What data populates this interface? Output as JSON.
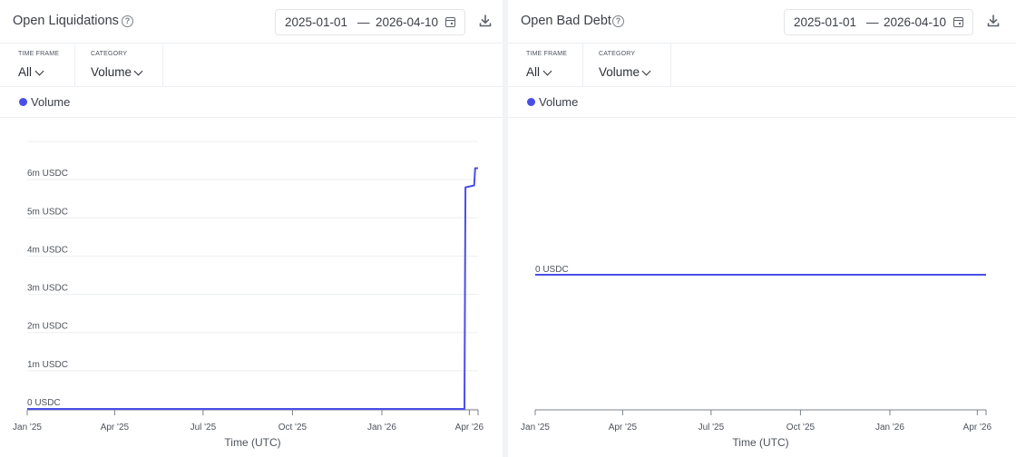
{
  "panels": [
    {
      "title": "Open Liquidations",
      "date_start": "2025-01-01",
      "date_sep": "—",
      "date_end": "2026-04-10",
      "filters": [
        {
          "label": "TIME FRAME",
          "value": "All"
        },
        {
          "label": "CATEGORY",
          "value": "Volume"
        }
      ],
      "legend": "Volume"
    },
    {
      "title": "Open Bad Debt",
      "date_start": "2025-01-01",
      "date_sep": "—",
      "date_end": "2026-04-10",
      "filters": [
        {
          "label": "TIME FRAME",
          "value": "All"
        },
        {
          "label": "CATEGORY",
          "value": "Volume"
        }
      ],
      "legend": "Volume"
    }
  ],
  "colors": {
    "series": "#4a4ee8",
    "grid": "#eceef1",
    "axis": "#7b818a"
  },
  "chart_data": [
    {
      "type": "line",
      "title": "Open Liquidations",
      "xlabel": "Time (UTC)",
      "ylabel": "",
      "x_ticks": [
        "Jan '25",
        "Apr '25",
        "Jul '25",
        "Oct '25",
        "Jan '26",
        "Apr '26"
      ],
      "y_ticks": [
        "0 USDC",
        "1m USDC",
        "2m USDC",
        "3m USDC",
        "4m USDC",
        "5m USDC",
        "6m USDC"
      ],
      "ylim": [
        0,
        7000000
      ],
      "xlim": [
        "2025-01-01",
        "2026-04-10"
      ],
      "grid": true,
      "legend_position": "top-left",
      "series": [
        {
          "name": "Volume",
          "x": [
            "2025-01-01",
            "2025-06-01",
            "2025-12-01",
            "2026-03-27",
            "2026-03-28",
            "2026-04-06",
            "2026-04-07",
            "2026-04-10"
          ],
          "y": [
            0,
            0,
            0,
            0,
            5800000,
            5850000,
            6300000,
            6300000
          ]
        }
      ]
    },
    {
      "type": "line",
      "title": "Open Bad Debt",
      "xlabel": "Time (UTC)",
      "ylabel": "",
      "x_ticks": [
        "Jan '25",
        "Apr '25",
        "Jul '25",
        "Oct '25",
        "Jan '26",
        "Apr '26"
      ],
      "y_ticks": [
        "0 USDC"
      ],
      "xlim": [
        "2025-01-01",
        "2026-04-10"
      ],
      "grid": true,
      "legend_position": "top-left",
      "series": [
        {
          "name": "Volume",
          "x": [
            "2025-01-01",
            "2026-04-10"
          ],
          "y": [
            0,
            0
          ]
        }
      ]
    }
  ]
}
